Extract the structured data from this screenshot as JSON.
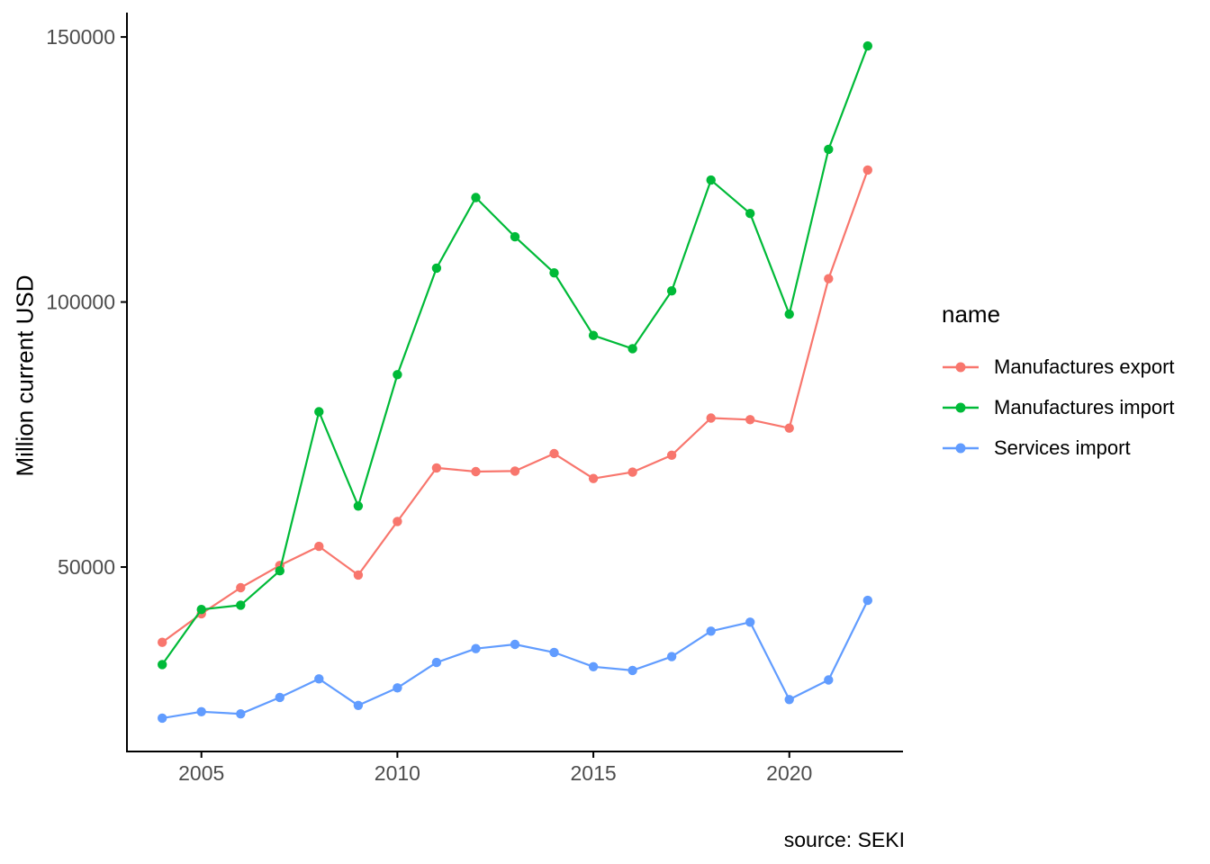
{
  "figure": {
    "background_color": "#ffffff",
    "axis_text_color": "#4d4d4d",
    "axis_line_color": "#000000"
  },
  "chart_data": {
    "type": "line",
    "title": "",
    "xlabel": "",
    "ylabel": "Million current USD",
    "caption": "source: SEKI",
    "legend_title": "name",
    "legend_position": "right",
    "grid": false,
    "marker": "point",
    "x": [
      2004,
      2005,
      2006,
      2007,
      2008,
      2009,
      2010,
      2011,
      2012,
      2013,
      2014,
      2015,
      2016,
      2017,
      2018,
      2019,
      2020,
      2021,
      2022
    ],
    "x_ticks": [
      2005,
      2010,
      2015,
      2020
    ],
    "x_tick_labels": [
      "2005",
      "2010",
      "2015",
      "2020"
    ],
    "y_ticks": [
      50000,
      100000,
      150000
    ],
    "y_tick_labels": [
      "50000",
      "100000",
      "150000"
    ],
    "xlim": [
      2003.1,
      2022.9
    ],
    "ylim": [
      15200,
      154600
    ],
    "series": [
      {
        "name": "Manufactures export",
        "color": "#F8766D",
        "values": [
          35800,
          41200,
          46100,
          50300,
          53900,
          48500,
          58600,
          68700,
          68000,
          68100,
          71400,
          66700,
          67900,
          71100,
          78100,
          77800,
          76200,
          104400,
          124900
        ]
      },
      {
        "name": "Manufactures import",
        "color": "#00BA38",
        "values": [
          31600,
          42000,
          42800,
          49300,
          79300,
          61500,
          86300,
          106400,
          119700,
          112300,
          105500,
          93700,
          91200,
          102100,
          123000,
          116700,
          97700,
          128800,
          148300
        ]
      },
      {
        "name": "Services import",
        "color": "#619CFF",
        "values": [
          21500,
          22700,
          22300,
          25400,
          28900,
          23900,
          27200,
          32000,
          34600,
          35400,
          33900,
          31200,
          30500,
          33100,
          37900,
          39600,
          25000,
          28700,
          43700
        ]
      }
    ]
  }
}
